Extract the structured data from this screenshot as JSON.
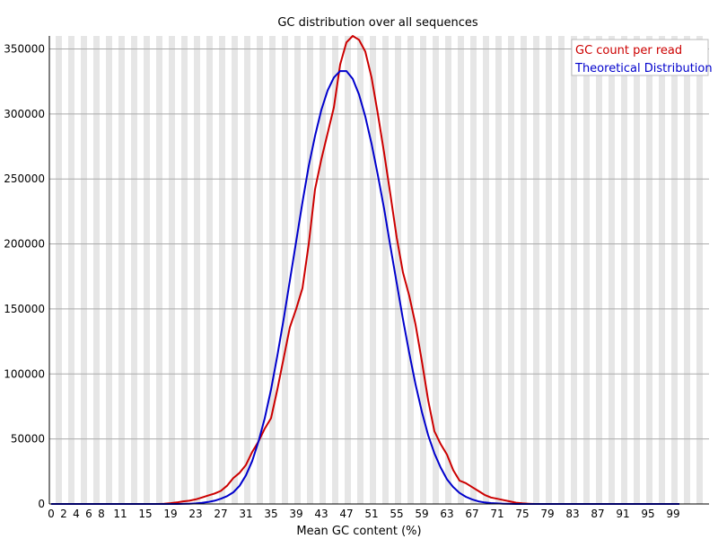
{
  "chart_data": {
    "type": "line",
    "title": "GC distribution over all sequences",
    "xlabel": "Mean GC content (%)",
    "ylabel": "",
    "xlim": [
      0,
      100
    ],
    "ylim": [
      0,
      360000
    ],
    "grid": true,
    "legend_position": "top-right",
    "x_tick_labels": [
      "0",
      "2",
      "4",
      "6",
      "8",
      "11",
      "15",
      "19",
      "23",
      "27",
      "31",
      "35",
      "39",
      "43",
      "47",
      "51",
      "55",
      "59",
      "63",
      "67",
      "71",
      "75",
      "79",
      "83",
      "87",
      "91",
      "95",
      "99"
    ],
    "y_tick_labels": [
      "0",
      "50000",
      "100000",
      "150000",
      "200000",
      "250000",
      "300000",
      "350000"
    ],
    "x": [
      0,
      1,
      2,
      3,
      4,
      5,
      6,
      7,
      8,
      9,
      10,
      11,
      12,
      13,
      14,
      15,
      16,
      17,
      18,
      19,
      20,
      21,
      22,
      23,
      24,
      25,
      26,
      27,
      28,
      29,
      30,
      31,
      32,
      33,
      34,
      35,
      36,
      37,
      38,
      39,
      40,
      41,
      42,
      43,
      44,
      45,
      46,
      47,
      48,
      49,
      50,
      51,
      52,
      53,
      54,
      55,
      56,
      57,
      58,
      59,
      60,
      61,
      62,
      63,
      64,
      65,
      66,
      67,
      68,
      69,
      70,
      71,
      72,
      73,
      74,
      75,
      76,
      77,
      78,
      79,
      80,
      81,
      82,
      83,
      84,
      85,
      86,
      87,
      88,
      89,
      90,
      91,
      92,
      93,
      94,
      95,
      96,
      97,
      98,
      99,
      100
    ],
    "series": [
      {
        "name": "GC count per read",
        "color": "#cc0000",
        "values": [
          0,
          0,
          0,
          0,
          0,
          0,
          0,
          0,
          0,
          0,
          0,
          0,
          0,
          0,
          0,
          0,
          0,
          0,
          200,
          600,
          1200,
          2000,
          2500,
          3500,
          5000,
          6500,
          8000,
          10000,
          14000,
          20000,
          24000,
          30000,
          40000,
          48000,
          58000,
          66000,
          88000,
          112000,
          136000,
          150000,
          166000,
          200000,
          242000,
          265000,
          285000,
          305000,
          338000,
          355000,
          360000,
          357000,
          348000,
          328000,
          300000,
          270000,
          238000,
          205000,
          178000,
          160000,
          138000,
          110000,
          80000,
          56000,
          46000,
          38000,
          26000,
          18000,
          16000,
          13000,
          10000,
          7000,
          5000,
          4000,
          3000,
          2000,
          1000,
          500,
          200,
          0,
          0,
          0,
          0,
          0,
          0,
          0,
          0,
          0,
          0,
          0,
          0,
          0,
          0,
          0,
          0,
          0,
          0,
          0,
          0,
          0,
          0,
          0,
          0
        ]
      },
      {
        "name": "Theoretical Distribution",
        "color": "#0000cc",
        "values": [
          0,
          0,
          0,
          0,
          0,
          0,
          0,
          0,
          0,
          0,
          0,
          0,
          0,
          0,
          0,
          0,
          0,
          0,
          0,
          0,
          0,
          100,
          200,
          400,
          800,
          1500,
          2500,
          4000,
          6000,
          9000,
          14000,
          22000,
          33000,
          48000,
          66000,
          88000,
          114000,
          142000,
          172000,
          202000,
          232000,
          260000,
          283000,
          303000,
          318000,
          328000,
          333000,
          333000,
          327000,
          315000,
          298000,
          277000,
          253000,
          227000,
          198000,
          170000,
          142000,
          116000,
          92000,
          71000,
          53000,
          39000,
          28000,
          19000,
          13000,
          8500,
          5500,
          3500,
          2000,
          1200,
          700,
          400,
          200,
          100,
          0,
          0,
          0,
          0,
          0,
          0,
          0,
          0,
          0,
          0,
          0,
          0,
          0,
          0,
          0,
          0,
          0,
          0,
          0,
          0,
          0,
          0,
          0,
          0,
          0,
          0,
          0
        ]
      }
    ]
  }
}
